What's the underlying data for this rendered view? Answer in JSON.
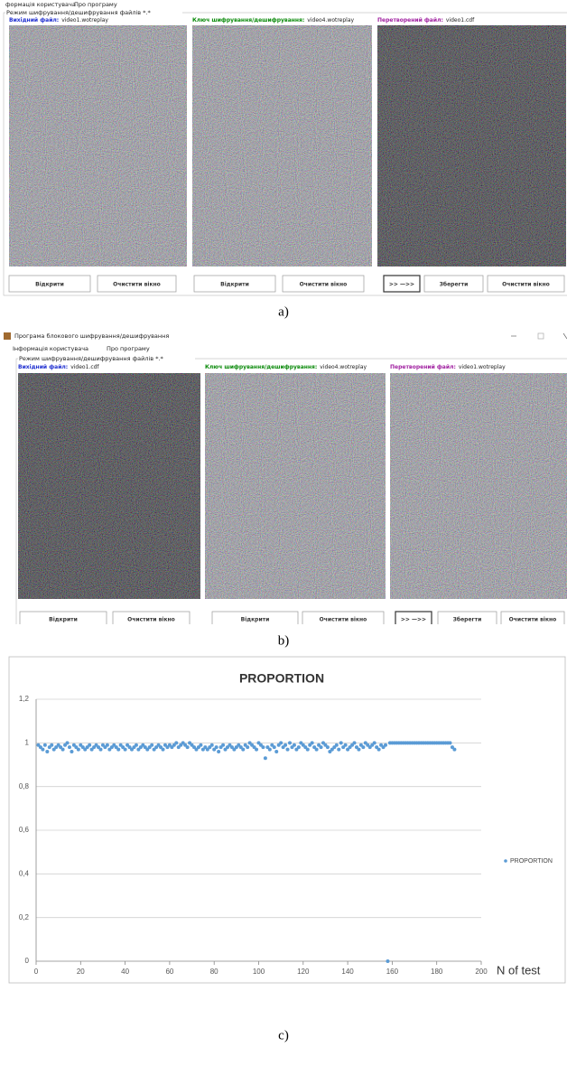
{
  "screens": [
    {
      "menu": [
        "формація користувача",
        "Про програму"
      ],
      "group": "Режим шифрування/дешифрування файлів *.*",
      "panes": [
        {
          "label": "Вихідний файл:",
          "file": "video1.wotreplay"
        },
        {
          "label": "Ключ шифрування/дешифрування:",
          "file": "video4.wotreplay"
        },
        {
          "label": "Перетворений файл:",
          "file": "video1.cdf"
        }
      ],
      "buttons": [
        "Відкрити",
        "Очистити вікно",
        "Відкрити",
        "Очистити вікно",
        ">> —>>",
        "Зберегти",
        "Очистити вікно"
      ],
      "caption": "a)"
    },
    {
      "title": "Програма блокового шифрування/дешифрування",
      "menu": [
        "Інформація користувача",
        "Про програму"
      ],
      "group": "Режим шифрування/дешифрування файлів *.*",
      "panes": [
        {
          "label": "Вихідний файл:",
          "file": "video1.cdf"
        },
        {
          "label": "Ключ шифрування/дешифрування:",
          "file": "video4.wotreplay"
        },
        {
          "label": "Перетворений файл:",
          "file": "video1.wotreplay"
        }
      ],
      "buttons": [
        "Відкрити",
        "Очистити вікно",
        "Відкрити",
        "Очистити вікно",
        ">> —>>",
        "Зберегти",
        "Очистити вікно"
      ],
      "caption": "b)"
    }
  ],
  "chart_data": {
    "type": "scatter",
    "title": "PROPORTION",
    "x_label": "N of test",
    "caption": "c)",
    "legend": "right",
    "grid": true,
    "series": [
      {
        "name": "PROPORTION",
        "color": "#5b9bd5",
        "x": [
          1,
          2,
          3,
          4,
          5,
          6,
          7,
          8,
          9,
          10,
          11,
          12,
          13,
          14,
          15,
          16,
          17,
          18,
          19,
          20,
          21,
          22,
          23,
          24,
          25,
          26,
          27,
          28,
          29,
          30,
          31,
          32,
          33,
          34,
          35,
          36,
          37,
          38,
          39,
          40,
          41,
          42,
          43,
          44,
          45,
          46,
          47,
          48,
          49,
          50,
          51,
          52,
          53,
          54,
          55,
          56,
          57,
          58,
          59,
          60,
          61,
          62,
          63,
          64,
          65,
          66,
          67,
          68,
          69,
          70,
          71,
          72,
          73,
          74,
          75,
          76,
          77,
          78,
          79,
          80,
          81,
          82,
          83,
          84,
          85,
          86,
          87,
          88,
          89,
          90,
          91,
          92,
          93,
          94,
          95,
          96,
          97,
          98,
          99,
          100,
          101,
          102,
          103,
          104,
          105,
          106,
          107,
          108,
          109,
          110,
          111,
          112,
          113,
          114,
          115,
          116,
          117,
          118,
          119,
          120,
          121,
          122,
          123,
          124,
          125,
          126,
          127,
          128,
          129,
          130,
          131,
          132,
          133,
          134,
          135,
          136,
          137,
          138,
          139,
          140,
          141,
          142,
          143,
          144,
          145,
          146,
          147,
          148,
          149,
          150,
          151,
          152,
          153,
          154,
          155,
          156,
          157,
          158,
          159,
          160,
          161,
          162,
          163,
          164,
          165,
          166,
          167,
          168,
          169,
          170,
          171,
          172,
          173,
          174,
          175,
          176,
          177,
          178,
          179,
          180,
          181,
          182,
          183,
          184,
          185,
          186,
          187,
          188
        ],
        "values": [
          0.99,
          0.98,
          0.97,
          0.99,
          0.96,
          0.98,
          0.99,
          0.97,
          0.98,
          0.99,
          0.98,
          0.97,
          0.99,
          1,
          0.98,
          0.96,
          0.99,
          0.98,
          0.97,
          0.99,
          0.98,
          0.97,
          0.98,
          0.99,
          0.97,
          0.98,
          0.99,
          0.98,
          0.97,
          0.99,
          0.98,
          0.99,
          0.97,
          0.98,
          0.99,
          0.98,
          0.97,
          0.99,
          0.98,
          0.97,
          0.99,
          0.98,
          0.97,
          0.98,
          0.99,
          0.97,
          0.98,
          0.99,
          0.98,
          0.97,
          0.98,
          0.99,
          0.97,
          0.98,
          0.99,
          0.98,
          0.97,
          0.99,
          0.98,
          0.99,
          0.98,
          0.99,
          1,
          0.98,
          0.99,
          1,
          0.99,
          0.98,
          1,
          0.99,
          0.98,
          0.97,
          0.98,
          0.99,
          0.97,
          0.98,
          0.97,
          0.98,
          0.99,
          0.97,
          0.98,
          0.96,
          0.98,
          0.99,
          0.97,
          0.98,
          0.99,
          0.98,
          0.97,
          0.98,
          0.99,
          0.98,
          0.97,
          0.99,
          0.98,
          1,
          0.99,
          0.98,
          0.97,
          1,
          0.99,
          0.98,
          0.93,
          0.98,
          0.97,
          0.99,
          0.98,
          0.96,
          0.99,
          1,
          0.98,
          0.99,
          0.97,
          1,
          0.98,
          0.99,
          0.97,
          0.98,
          1,
          0.99,
          0.98,
          0.97,
          0.99,
          1,
          0.98,
          0.97,
          0.99,
          0.98,
          1,
          0.99,
          0.98,
          0.96,
          0.97,
          0.98,
          0.99,
          0.97,
          1,
          0.98,
          0.99,
          0.97,
          0.98,
          0.99,
          1,
          0.98,
          0.97,
          0.99,
          0.98,
          1,
          0.99,
          0.98,
          0.99,
          1,
          0.98,
          0.97,
          0.99,
          0.98,
          0.99,
          0,
          1,
          1,
          1,
          1,
          1,
          1,
          1,
          1,
          1,
          1,
          1,
          1,
          1,
          1,
          1,
          1,
          1,
          1,
          1,
          1,
          1,
          1,
          1,
          1,
          1,
          1,
          1,
          1,
          0.98,
          0.97
        ]
      }
    ],
    "xlim": [
      0,
      200
    ],
    "xticks": [
      0,
      20,
      40,
      60,
      80,
      100,
      120,
      140,
      160,
      180,
      200
    ],
    "ylim": [
      0,
      1.2
    ],
    "yticks": [
      0,
      {
        "value": 0.2,
        "label": "0,2"
      },
      {
        "value": 0.4,
        "label": "0,4"
      },
      {
        "value": 0.6,
        "label": "0,6"
      },
      {
        "value": 0.8,
        "label": "0,8"
      },
      1,
      {
        "value": 1.2,
        "label": "1,2"
      }
    ]
  }
}
